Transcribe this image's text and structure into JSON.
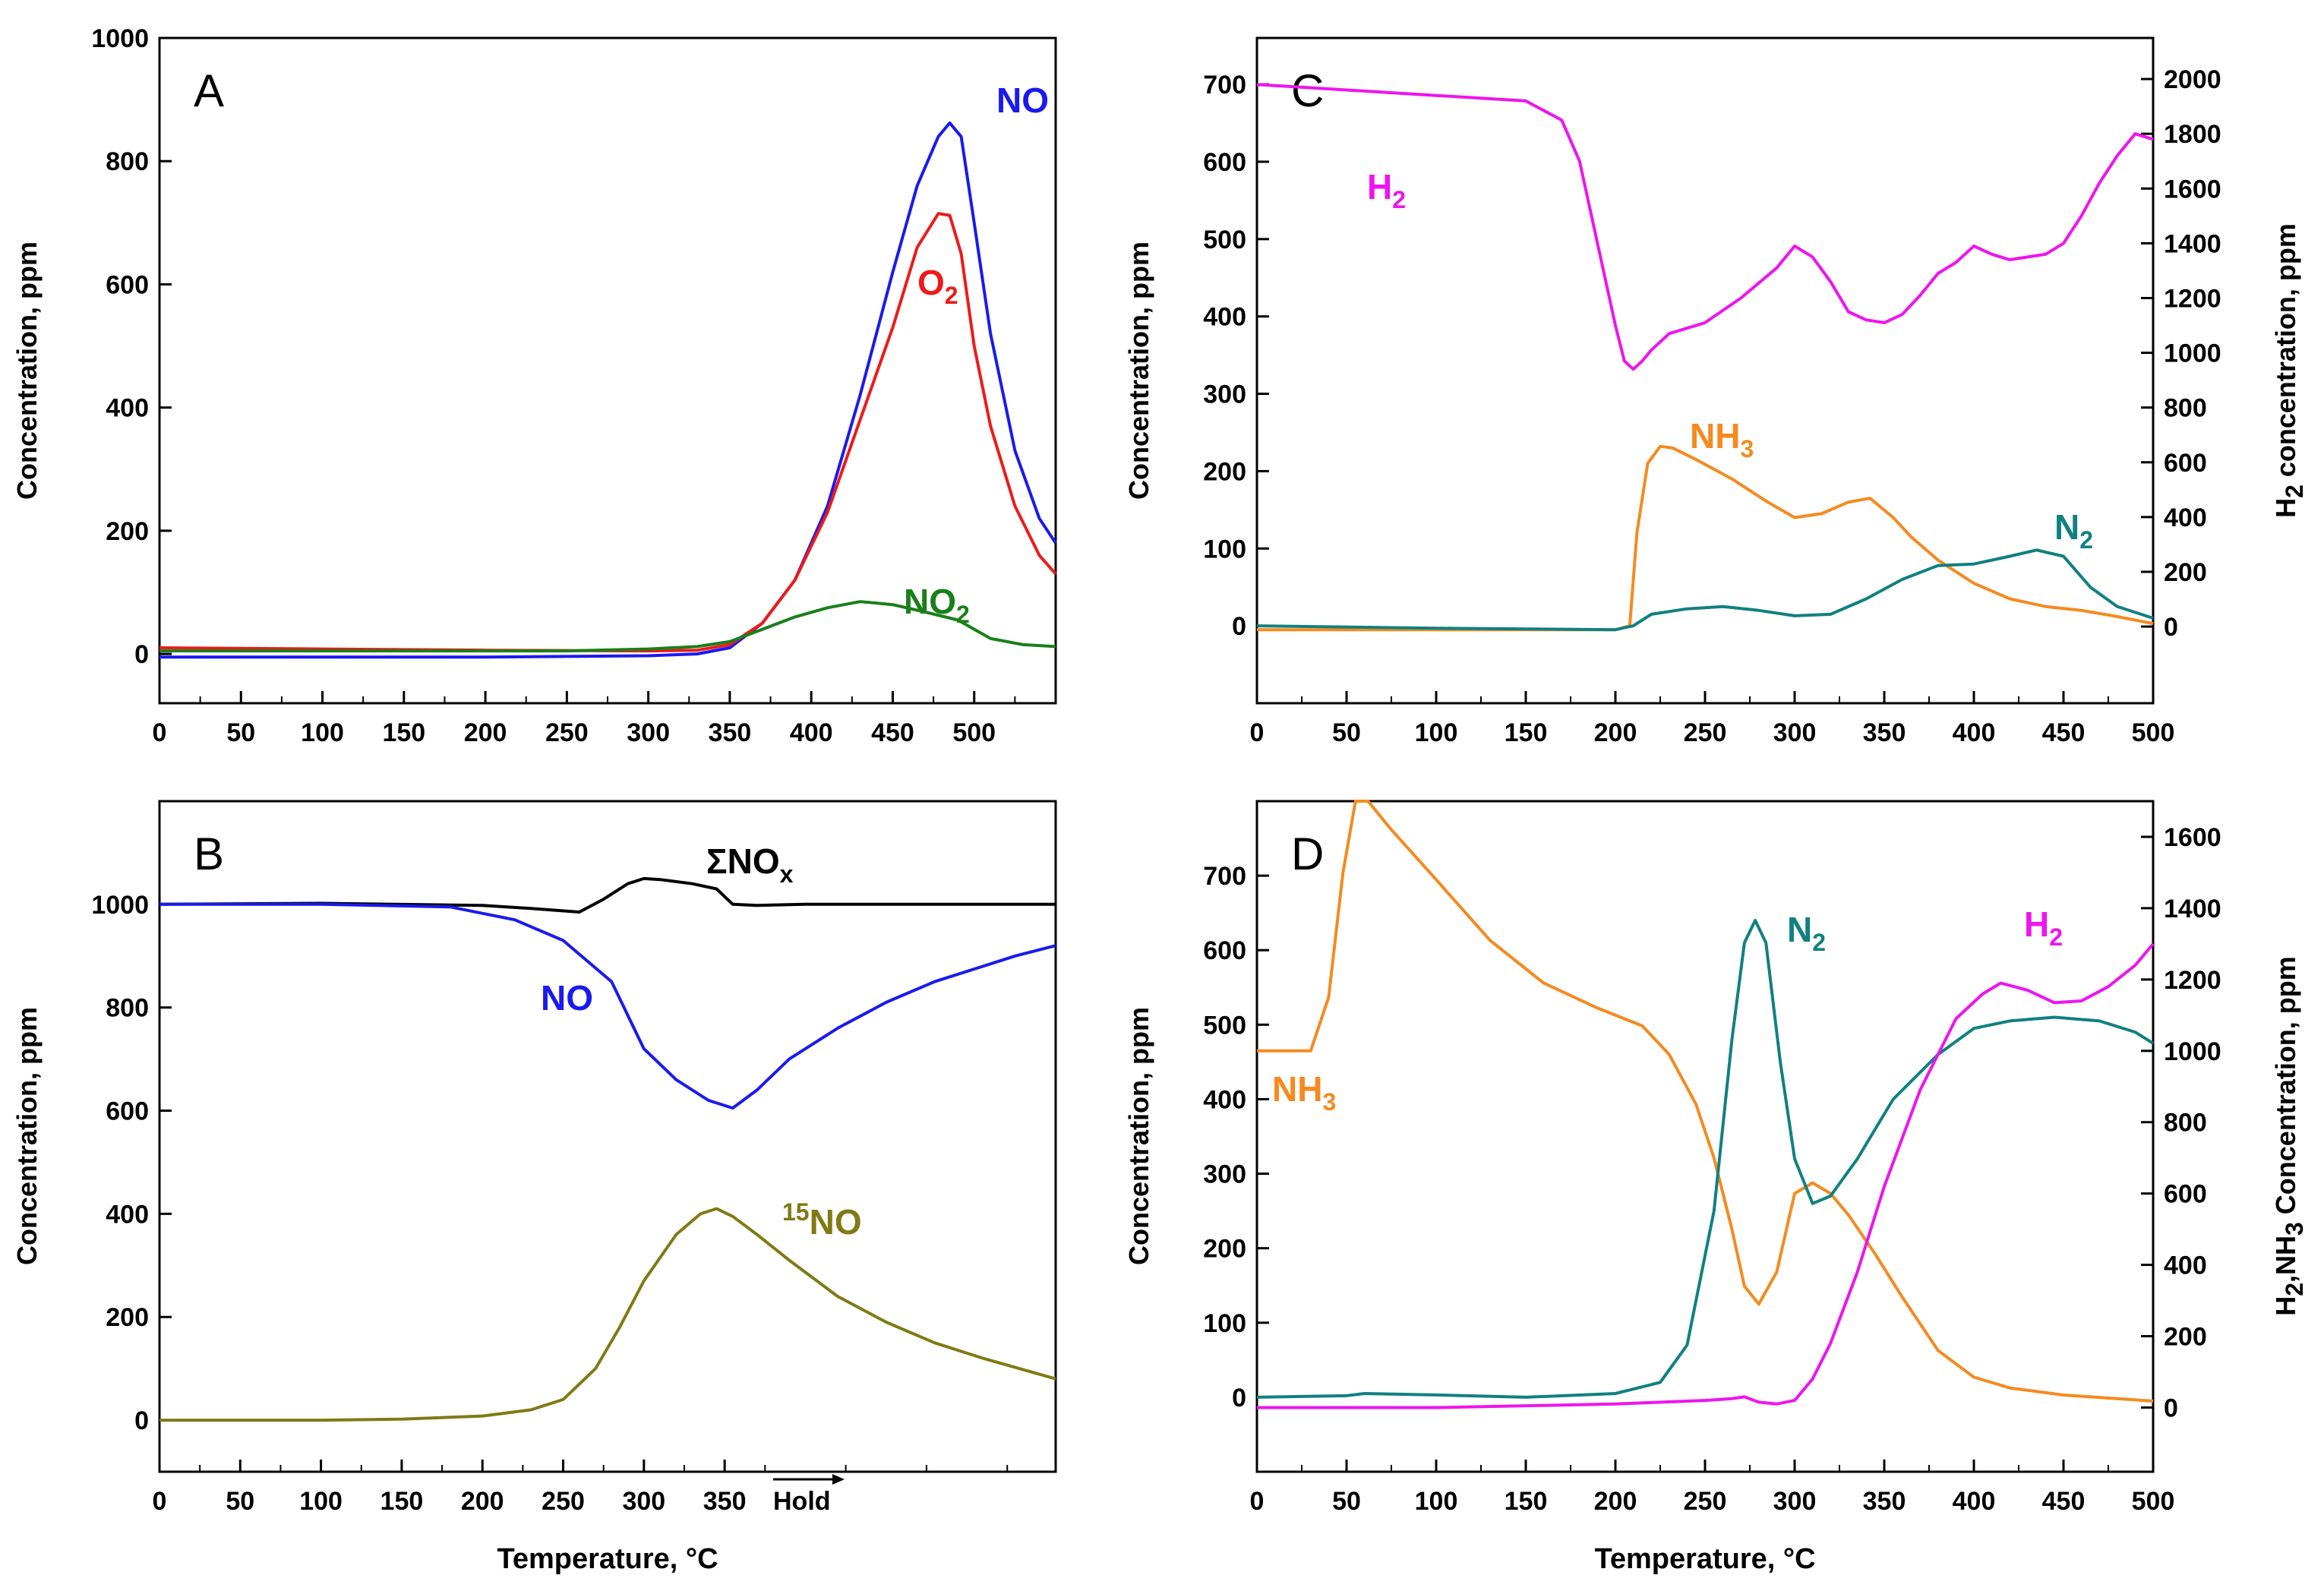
{
  "figure": {
    "x_axis_label": "Temperature, °C",
    "hold_label": "Hold"
  },
  "chart_data": [
    {
      "panel": "A",
      "type": "line",
      "xlim": [
        0,
        550
      ],
      "ylim": [
        -80,
        1000
      ],
      "xticks": [
        0,
        50,
        100,
        150,
        200,
        250,
        300,
        350,
        400,
        450,
        500
      ],
      "yticks": [
        0,
        200,
        400,
        600,
        800,
        1000
      ],
      "ylabel": "Concentration, ppm",
      "series": [
        {
          "name": "NO",
          "label_main": "NO",
          "label_sub": "",
          "label_sup": "",
          "color": "#1a1aee",
          "x": [
            0,
            100,
            200,
            300,
            330,
            350,
            370,
            390,
            410,
            430,
            450,
            465,
            478,
            485,
            492,
            500,
            510,
            525,
            540,
            550
          ],
          "y": [
            -5,
            -5,
            -5,
            -3,
            0,
            10,
            50,
            120,
            240,
            420,
            620,
            760,
            840,
            862,
            840,
            700,
            520,
            330,
            220,
            180
          ]
        },
        {
          "name": "O2",
          "label_main": "O",
          "label_sub": "2",
          "label_sup": "",
          "color": "#ee1a1a",
          "x": [
            0,
            100,
            200,
            300,
            330,
            350,
            370,
            390,
            410,
            430,
            450,
            465,
            478,
            485,
            492,
            500,
            510,
            525,
            540,
            550
          ],
          "y": [
            10,
            8,
            6,
            5,
            6,
            15,
            50,
            120,
            230,
            380,
            530,
            660,
            715,
            712,
            650,
            500,
            370,
            240,
            160,
            130
          ]
        },
        {
          "name": "NO2",
          "label_main": "NO",
          "label_sub": "2",
          "label_sup": "",
          "color": "#1a7f1a",
          "x": [
            0,
            100,
            200,
            250,
            300,
            330,
            350,
            370,
            390,
            410,
            430,
            450,
            470,
            490,
            510,
            530,
            550
          ],
          "y": [
            5,
            5,
            5,
            5,
            8,
            12,
            20,
            40,
            60,
            75,
            85,
            80,
            68,
            55,
            25,
            15,
            12
          ]
        }
      ]
    },
    {
      "panel": "B",
      "type": "line",
      "xlim": [
        0,
        555
      ],
      "ylim": [
        -100,
        1200
      ],
      "xticks": [
        0,
        50,
        100,
        150,
        200,
        250,
        300,
        350
      ],
      "yticks": [
        0,
        200,
        400,
        600,
        800,
        1000
      ],
      "ylabel": "Concentration, ppm",
      "series": [
        {
          "name": "ΣNOx",
          "label_main": "ΣNO",
          "label_sub": "x",
          "label_sup": "",
          "color": "#000000",
          "x": [
            0,
            100,
            200,
            230,
            260,
            275,
            290,
            300,
            310,
            330,
            345,
            355,
            370,
            400,
            450,
            500,
            555
          ],
          "y": [
            1000,
            1002,
            998,
            992,
            985,
            1010,
            1040,
            1050,
            1048,
            1040,
            1030,
            1000,
            998,
            1000,
            1000,
            1000,
            1000
          ]
        },
        {
          "name": "NO",
          "label_main": "NO",
          "label_sub": "",
          "label_sup": "",
          "color": "#1a1aee",
          "x": [
            0,
            100,
            180,
            220,
            250,
            280,
            300,
            320,
            340,
            355,
            370,
            390,
            420,
            450,
            480,
            510,
            530,
            555
          ],
          "y": [
            1000,
            1000,
            995,
            970,
            930,
            850,
            720,
            660,
            620,
            605,
            640,
            700,
            760,
            810,
            850,
            880,
            900,
            920
          ]
        },
        {
          "name": "15NO",
          "label_main": "NO",
          "label_sub": "",
          "label_sup": "15",
          "color": "#7f7a14",
          "x": [
            0,
            100,
            150,
            200,
            230,
            250,
            270,
            285,
            300,
            320,
            335,
            345,
            355,
            370,
            390,
            420,
            450,
            480,
            510,
            555
          ],
          "y": [
            0,
            0,
            2,
            8,
            20,
            40,
            100,
            180,
            270,
            360,
            400,
            410,
            395,
            360,
            310,
            240,
            190,
            150,
            120,
            80
          ]
        }
      ]
    },
    {
      "panel": "C",
      "type": "line",
      "xlim": [
        0,
        500
      ],
      "ylim": [
        -100,
        760
      ],
      "xticks": [
        0,
        50,
        100,
        150,
        200,
        250,
        300,
        350,
        400,
        450,
        500
      ],
      "yticks": [
        0,
        100,
        200,
        300,
        400,
        500,
        600,
        700
      ],
      "ylabel": "Concentration, ppm",
      "y2lim": [
        -280,
        2150
      ],
      "y2ticks": [
        0,
        200,
        400,
        600,
        800,
        1000,
        1200,
        1400,
        1600,
        1800,
        2000
      ],
      "y2label_main": "H",
      "y2label_sub": "2",
      "y2label_rest": " concentration, ppm",
      "series": [
        {
          "name": "H2",
          "label_main": "H",
          "label_sub": "2",
          "label_sup": "",
          "color": "#ee14ee",
          "axis": "y2",
          "x": [
            0,
            50,
            100,
            150,
            170,
            180,
            190,
            200,
            205,
            210,
            215,
            220,
            230,
            250,
            270,
            290,
            300,
            310,
            320,
            330,
            340,
            350,
            360,
            370,
            380,
            390,
            400,
            410,
            420,
            430,
            440,
            450,
            460,
            470,
            480,
            490,
            500
          ],
          "y": [
            1980,
            1960,
            1940,
            1920,
            1850,
            1700,
            1400,
            1100,
            970,
            940,
            970,
            1010,
            1070,
            1110,
            1200,
            1310,
            1390,
            1350,
            1260,
            1150,
            1120,
            1110,
            1140,
            1210,
            1290,
            1330,
            1390,
            1360,
            1340,
            1350,
            1360,
            1400,
            1500,
            1620,
            1720,
            1800,
            1780
          ]
        },
        {
          "name": "NH3",
          "label_main": "NH",
          "label_sub": "3",
          "label_sup": "",
          "color": "#f58a1f",
          "axis": "y",
          "x": [
            0,
            100,
            200,
            208,
            212,
            218,
            225,
            232,
            245,
            265,
            285,
            300,
            315,
            330,
            342,
            355,
            365,
            380,
            400,
            420,
            440,
            460,
            480,
            500
          ],
          "y": [
            -5,
            -5,
            -5,
            0,
            120,
            210,
            232,
            230,
            215,
            190,
            160,
            140,
            145,
            160,
            165,
            140,
            115,
            85,
            55,
            35,
            25,
            20,
            12,
            3
          ]
        },
        {
          "name": "N2",
          "label_main": "N",
          "label_sub": "2",
          "label_sup": "",
          "color": "#118080",
          "axis": "y",
          "x": [
            0,
            100,
            200,
            210,
            220,
            240,
            260,
            280,
            300,
            320,
            340,
            360,
            380,
            400,
            420,
            435,
            450,
            465,
            480,
            500
          ],
          "y": [
            0,
            -3,
            -5,
            0,
            15,
            22,
            25,
            20,
            13,
            15,
            35,
            60,
            78,
            80,
            90,
            98,
            90,
            50,
            25,
            10
          ]
        }
      ]
    },
    {
      "panel": "D",
      "type": "line",
      "xlim": [
        0,
        500
      ],
      "ylim": [
        -100,
        800
      ],
      "xticks": [
        0,
        50,
        100,
        150,
        200,
        250,
        300,
        350,
        400,
        450,
        500
      ],
      "yticks": [
        0,
        100,
        200,
        300,
        400,
        500,
        600,
        700
      ],
      "ylabel": "Concentration, ppm",
      "y2lim": [
        -180,
        1700
      ],
      "y2ticks": [
        0,
        200,
        400,
        600,
        800,
        1000,
        1200,
        1400,
        1600
      ],
      "y2label_main": "H",
      "y2label_sub": "2",
      "y2label_rest": ",NH",
      "y2label_sub2": "3",
      "y2label_rest2": " Concentration, ppm",
      "series": [
        {
          "name": "NH3",
          "label_main": "NH",
          "label_sub": "3",
          "label_sup": "",
          "color": "#f58a1f",
          "axis": "y2",
          "x": [
            0,
            30,
            40,
            48,
            55,
            62,
            75,
            100,
            130,
            160,
            190,
            215,
            230,
            245,
            255,
            265,
            272,
            280,
            290,
            300,
            310,
            320,
            330,
            345,
            360,
            380,
            400,
            420,
            450,
            480,
            500
          ],
          "y": [
            1000,
            1000,
            1150,
            1500,
            1700,
            1700,
            1620,
            1480,
            1310,
            1190,
            1120,
            1070,
            990,
            850,
            700,
            500,
            340,
            290,
            380,
            600,
            630,
            600,
            540,
            430,
            310,
            160,
            85,
            55,
            35,
            25,
            18
          ]
        },
        {
          "name": "N2",
          "label_main": "N",
          "label_sub": "2",
          "label_sup": "",
          "color": "#118080",
          "axis": "y",
          "x": [
            0,
            50,
            60,
            100,
            150,
            200,
            225,
            240,
            255,
            265,
            272,
            278,
            284,
            292,
            300,
            310,
            320,
            335,
            355,
            380,
            400,
            420,
            445,
            470,
            490,
            500
          ],
          "y": [
            0,
            2,
            5,
            3,
            0,
            5,
            20,
            70,
            250,
            480,
            610,
            640,
            610,
            450,
            320,
            260,
            270,
            320,
            400,
            460,
            495,
            505,
            510,
            505,
            490,
            475
          ]
        },
        {
          "name": "H2",
          "label_main": "H",
          "label_sub": "2",
          "label_sup": "",
          "color": "#ee14ee",
          "axis": "y2",
          "x": [
            0,
            100,
            200,
            250,
            265,
            272,
            280,
            290,
            300,
            310,
            320,
            335,
            350,
            370,
            390,
            405,
            415,
            430,
            445,
            460,
            475,
            490,
            500
          ],
          "y": [
            0,
            0,
            10,
            20,
            25,
            30,
            15,
            10,
            20,
            80,
            180,
            380,
            620,
            890,
            1090,
            1160,
            1190,
            1170,
            1135,
            1140,
            1180,
            1240,
            1300
          ]
        }
      ]
    }
  ]
}
